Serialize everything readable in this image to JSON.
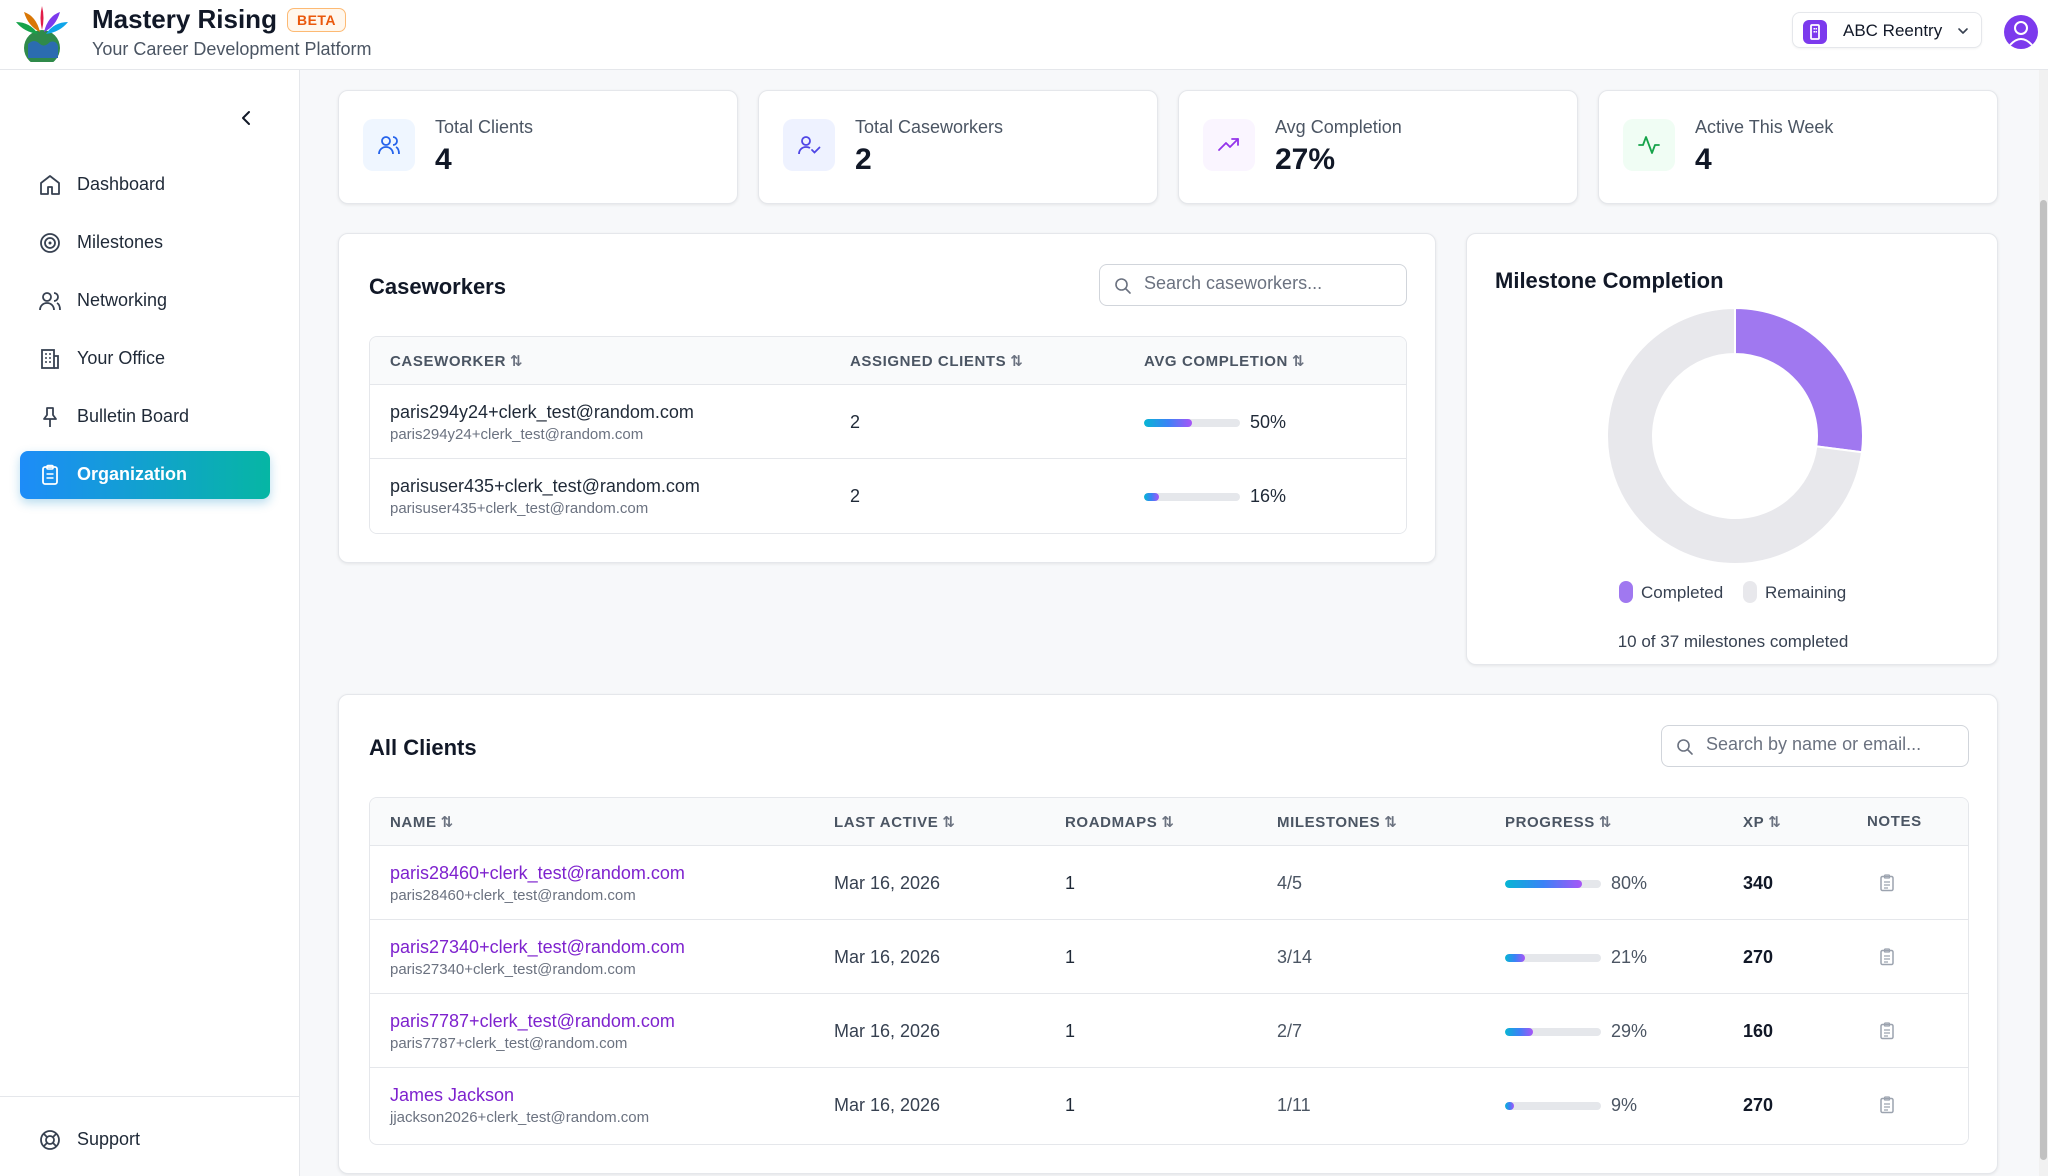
{
  "brand": {
    "title": "Mastery Rising",
    "badge": "BETA",
    "subtitle": "Your Career Development Platform"
  },
  "org_selector": {
    "name": "ABC Reentry"
  },
  "sidebar": {
    "items": [
      {
        "label": "Dashboard",
        "icon": "home-icon"
      },
      {
        "label": "Milestones",
        "icon": "target-icon"
      },
      {
        "label": "Networking",
        "icon": "users-icon"
      },
      {
        "label": "Your Office",
        "icon": "building-icon"
      },
      {
        "label": "Bulletin Board",
        "icon": "pin-icon"
      },
      {
        "label": "Organization",
        "icon": "clipboard-icon",
        "active": true
      }
    ],
    "support": "Support"
  },
  "stats": [
    {
      "label": "Total Clients",
      "value": "4",
      "icon": "users-icon",
      "color": "#2563eb"
    },
    {
      "label": "Total Caseworkers",
      "value": "2",
      "icon": "user-check-icon",
      "color": "#4f46e5"
    },
    {
      "label": "Avg Completion",
      "value": "27%",
      "icon": "trending-up-icon",
      "color": "#9333ea"
    },
    {
      "label": "Active This Week",
      "value": "4",
      "icon": "activity-icon",
      "color": "#16a34a"
    }
  ],
  "caseworkers": {
    "title": "Caseworkers",
    "search_placeholder": "Search caseworkers...",
    "columns": [
      "CASEWORKER",
      "ASSIGNED CLIENTS",
      "AVG COMPLETION"
    ],
    "rows": [
      {
        "name": "paris294y24+clerk_test@random.com",
        "email": "paris294y24+clerk_test@random.com",
        "assigned": "2",
        "completion": "50%",
        "completion_value": 50
      },
      {
        "name": "parisuser435+clerk_test@random.com",
        "email": "parisuser435+clerk_test@random.com",
        "assigned": "2",
        "completion": "16%",
        "completion_value": 16
      }
    ]
  },
  "milestone_chart": {
    "title": "Milestone Completion",
    "legend": [
      "Completed",
      "Remaining"
    ],
    "summary": "10 of 37 milestones completed"
  },
  "chart_data": {
    "type": "pie",
    "categories": [
      "Completed",
      "Remaining"
    ],
    "values": [
      10,
      27
    ],
    "colors": [
      "#a078f0",
      "#e8e8ec"
    ],
    "title": "Milestone Completion"
  },
  "clients": {
    "title": "All Clients",
    "search_placeholder": "Search by name or email...",
    "columns": [
      "NAME",
      "LAST ACTIVE",
      "ROADMAPS",
      "MILESTONES",
      "PROGRESS",
      "XP",
      "NOTES"
    ],
    "rows": [
      {
        "name": "paris28460+clerk_test@random.com",
        "email": "paris28460+clerk_test@random.com",
        "last_active": "Mar 16, 2026",
        "roadmaps": "1",
        "milestones": "4/5",
        "progress": "80%",
        "progress_value": 80,
        "xp": "340"
      },
      {
        "name": "paris27340+clerk_test@random.com",
        "email": "paris27340+clerk_test@random.com",
        "last_active": "Mar 16, 2026",
        "roadmaps": "1",
        "milestones": "3/14",
        "progress": "21%",
        "progress_value": 21,
        "xp": "270"
      },
      {
        "name": "paris7787+clerk_test@random.com",
        "email": "paris7787+clerk_test@random.com",
        "last_active": "Mar 16, 2026",
        "roadmaps": "1",
        "milestones": "2/7",
        "progress": "29%",
        "progress_value": 29,
        "xp": "160"
      },
      {
        "name": "James Jackson",
        "email": "jjackson2026+clerk_test@random.com",
        "last_active": "Mar 16, 2026",
        "roadmaps": "1",
        "milestones": "1/11",
        "progress": "9%",
        "progress_value": 9,
        "xp": "270"
      }
    ]
  }
}
